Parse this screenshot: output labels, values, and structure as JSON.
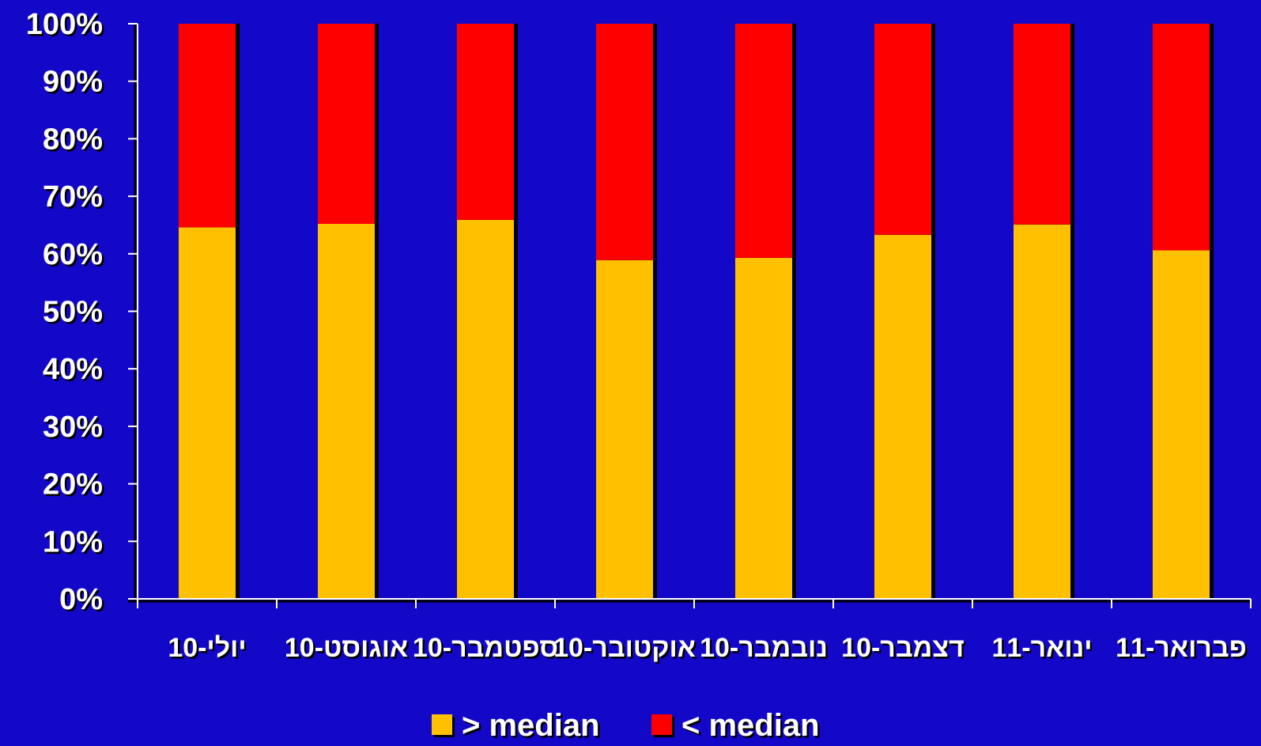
{
  "colors": {
    "background": "#1408c8",
    "above_median": "#ffc000",
    "below_median": "#ff0000",
    "axis": "#ffffff",
    "text": "#ffffff",
    "shadow": "#000000"
  },
  "chart_data": {
    "type": "bar",
    "stacked": "percent",
    "title": "",
    "xlabel": "",
    "ylabel": "",
    "ylim": [
      0,
      100
    ],
    "yticks": [
      "0%",
      "10%",
      "20%",
      "30%",
      "40%",
      "50%",
      "60%",
      "70%",
      "80%",
      "90%",
      "100%"
    ],
    "categories": [
      "יולי-10",
      "אוגוסט-10",
      "ספטמבר-10",
      "אוקטובר-10",
      "נובמבר-10",
      "דצמבר-10",
      "ינואר-11",
      "פברואר-11"
    ],
    "series": [
      {
        "name": "> median",
        "color": "#ffc000",
        "values": [
          64.6,
          65.2,
          65.9,
          58.9,
          59.3,
          63.3,
          65.1,
          60.6
        ]
      },
      {
        "name": "< median",
        "color": "#ff0000",
        "values": [
          35.4,
          34.8,
          34.1,
          41.1,
          40.7,
          36.7,
          34.9,
          39.4
        ]
      }
    ],
    "grid": false,
    "legend_position": "bottom"
  }
}
